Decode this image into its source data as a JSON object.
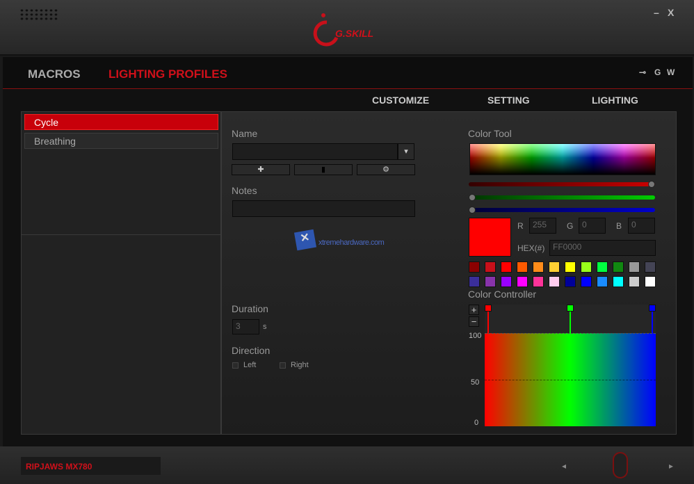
{
  "window": {
    "brand": "G.SKILL",
    "minimize": "–",
    "close": "X"
  },
  "nav": {
    "tabs": [
      {
        "label": "MACROS",
        "active": false
      },
      {
        "label": "LIGHTING PROFILES",
        "active": true
      }
    ],
    "tools": [
      "plug-icon",
      "G",
      "W"
    ]
  },
  "subtabs": [
    "CUSTOMIZE",
    "SETTING",
    "LIGHTING"
  ],
  "profiles": [
    {
      "label": "Cycle",
      "selected": true
    },
    {
      "label": "Breathing",
      "selected": false
    }
  ],
  "form": {
    "name_label": "Name",
    "name_value": "",
    "notes_label": "Notes",
    "notes_value": "",
    "duration_label": "Duration",
    "duration_value": "3",
    "duration_unit": "s",
    "direction_label": "Direction",
    "direction_options": [
      {
        "label": "Left",
        "checked": false
      },
      {
        "label": "Right",
        "checked": false
      }
    ],
    "watermark": "xtremehardware.com"
  },
  "color_tool": {
    "title": "Color Tool",
    "r_label": "R",
    "g_label": "G",
    "b_label": "B",
    "r": "255",
    "g": "0",
    "b": "0",
    "hex_label": "HEX(#)",
    "hex": "FF0000",
    "current_color": "#ff0000",
    "slider_levels": {
      "r": 1.0,
      "g": 0.0,
      "b": 0.0
    },
    "swatches": [
      "#8b0000",
      "#c8101a",
      "#ff0000",
      "#ff5a00",
      "#ff8c1a",
      "#ffd033",
      "#ffff00",
      "#99ff1a",
      "#00ff40",
      "#118811",
      "#999999",
      "#444455",
      "#3a2e99",
      "#8833aa",
      "#9900ff",
      "#ff00ff",
      "#ff3399",
      "#ffccee",
      "#000099",
      "#0000ff",
      "#1a8cff",
      "#00ffff",
      "#cccccc",
      "#ffffff"
    ]
  },
  "color_controller": {
    "title": "Color Controller",
    "add": "+",
    "remove": "−",
    "y_ticks": [
      "100",
      "50",
      "0"
    ],
    "stops": [
      {
        "color": "#ff0000",
        "position": 0
      },
      {
        "color": "#00ff00",
        "position": 0.5
      },
      {
        "color": "#0000ff",
        "position": 1
      }
    ],
    "level": 100
  },
  "footer": {
    "device": "RIPJAWS MX780",
    "prev": "◂",
    "next": "▸"
  }
}
